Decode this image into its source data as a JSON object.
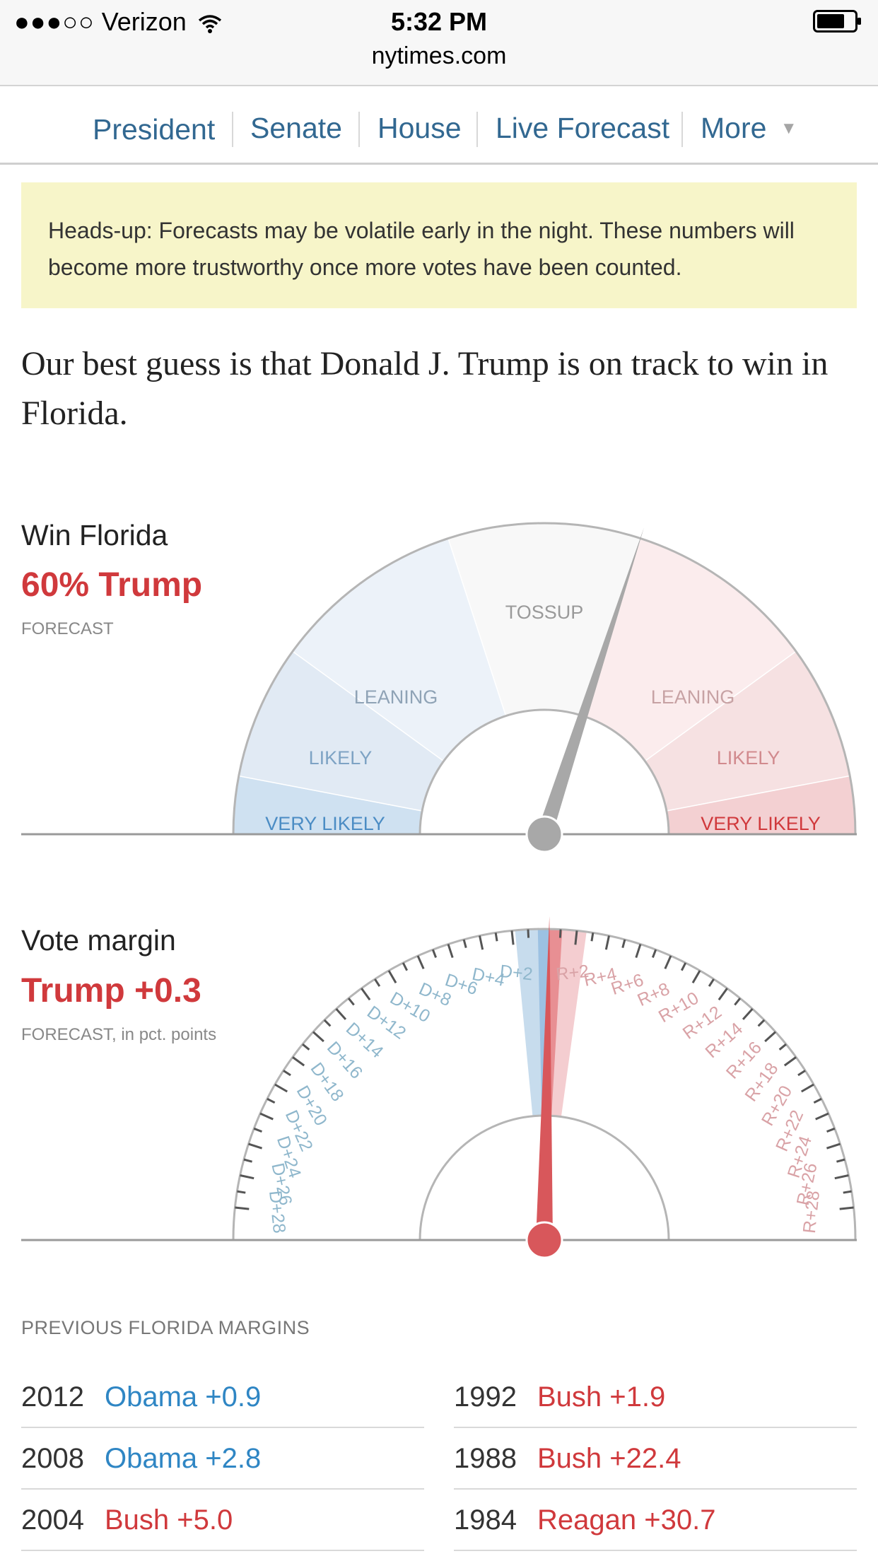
{
  "status_bar": {
    "signal": "●●●○○",
    "carrier": "Verizon",
    "time": "5:32 PM",
    "url": "nytimes.com"
  },
  "nav": {
    "items": [
      "President",
      "Senate",
      "House",
      "Live Forecast",
      "More"
    ],
    "more_caret": "▼"
  },
  "notice": {
    "text": "Heads-up: Forecasts may be volatile early in the night. These numbers will become more trustworthy once more votes have been counted."
  },
  "headline": "Our best guess is that Donald J. Trump is on track to win in Florida.",
  "win_gauge": {
    "label": "Win Florida",
    "value": "60% Trump",
    "sub": "FORECAST",
    "trump_win_probability": 0.6,
    "zones": {
      "tossup": "TOSSUP",
      "leaning": "LEANING",
      "likely": "LIKELY",
      "very_likely": "VERY LIKELY"
    },
    "colors": {
      "dem": "#dbe7f3",
      "rep": "#f6d5d7",
      "needle": "#a8a8a8"
    }
  },
  "margin_gauge": {
    "label": "Vote margin",
    "value": "Trump +0.3",
    "sub_main": "FORECAST",
    "sub_rest": ", in pct. points",
    "margin": 0.3,
    "dem_ticks": [
      "D+2",
      "D+4",
      "D+6",
      "D+8",
      "D+10",
      "D+12",
      "D+14",
      "D+16",
      "D+18",
      "D+20",
      "D+22",
      "D+24",
      "D+26",
      "D+28"
    ],
    "rep_ticks": [
      "R+2",
      "R+4",
      "R+6",
      "R+8",
      "R+10",
      "R+12",
      "R+14",
      "R+16",
      "R+18",
      "R+20",
      "R+22",
      "R+24",
      "R+26",
      "R+28"
    ],
    "colors": {
      "needle": "#d8575b"
    }
  },
  "previous": {
    "title": "PREVIOUS FLORIDA MARGINS",
    "left": [
      {
        "year": "2012",
        "margin": "Obama +0.9",
        "party": "dem"
      },
      {
        "year": "2008",
        "margin": "Obama +2.8",
        "party": "dem"
      },
      {
        "year": "2004",
        "margin": "Bush +5.0",
        "party": "rep"
      }
    ],
    "right": [
      {
        "year": "1992",
        "margin": "Bush +1.9",
        "party": "rep"
      },
      {
        "year": "1988",
        "margin": "Bush +22.4",
        "party": "rep"
      },
      {
        "year": "1984",
        "margin": "Reagan +30.7",
        "party": "rep"
      }
    ]
  }
}
